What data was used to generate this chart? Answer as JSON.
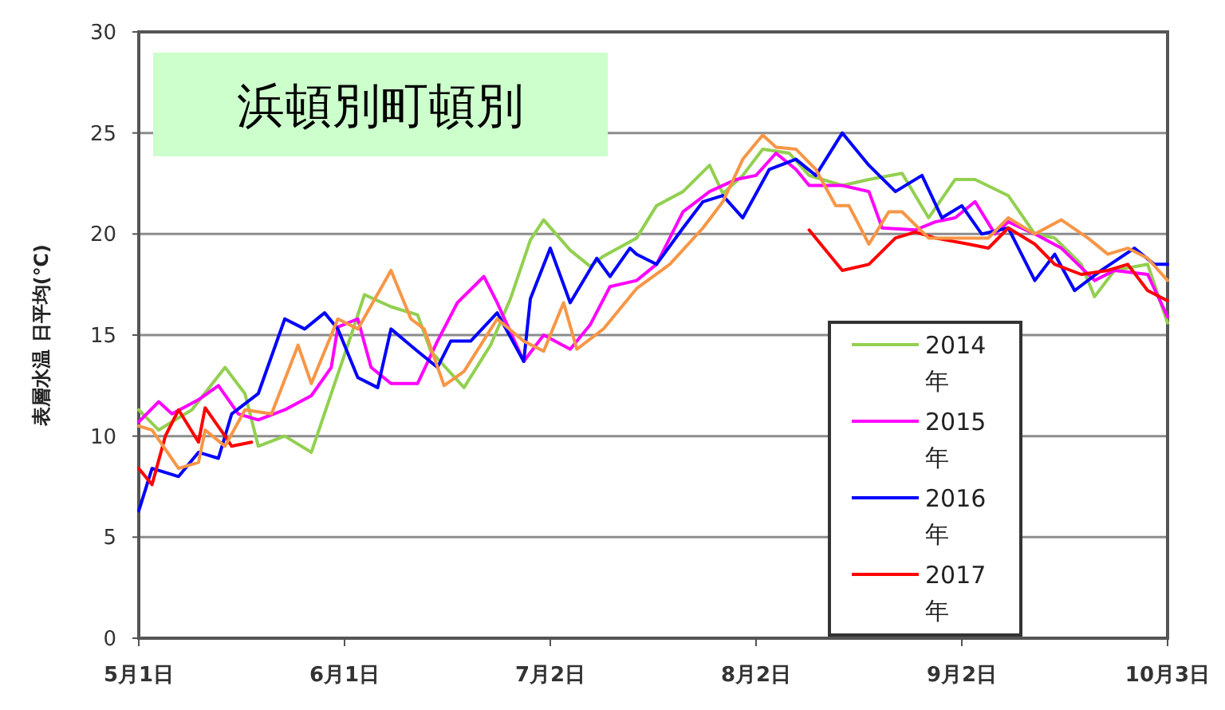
{
  "chart_data": {
    "type": "line",
    "title": "浜頓別町頓別",
    "ylabel": "表層水温 日平均(℃)",
    "xlim": [
      "--05-01",
      "--10-03"
    ],
    "xticks": [
      {
        "value": "--05-01",
        "label": "5月1日"
      },
      {
        "value": "--06-01",
        "label": "6月1日"
      },
      {
        "value": "--07-02",
        "label": "7月2日"
      },
      {
        "value": "--08-02",
        "label": "8月2日"
      },
      {
        "value": "--09-02",
        "label": "9月2日"
      },
      {
        "value": "--10-03",
        "label": "10月3日"
      }
    ],
    "ylim": [
      0,
      30
    ],
    "yticks": [
      0,
      5,
      10,
      15,
      20,
      25,
      30
    ],
    "grid": "y",
    "legend": "bottom right",
    "series": [
      {
        "name": "2014年",
        "color": "#92d050",
        "x": [
          "--05-01",
          "--05-04",
          "--05-09",
          "--05-14",
          "--05-17",
          "--05-19",
          "--05-23",
          "--05-27",
          "--05-30",
          "--06-02",
          "--06-04",
          "--06-08",
          "--06-12",
          "--06-14",
          "--06-19",
          "--06-23",
          "--06-26",
          "--06-29",
          "--07-01",
          "--07-05",
          "--07-08",
          "--07-10",
          "--07-15",
          "--07-18",
          "--07-22",
          "--07-26",
          "--07-28",
          "--07-31",
          "--08-03",
          "--08-07",
          "--08-10",
          "--08-15",
          "--08-19",
          "--08-24",
          "--08-28",
          "--09-01",
          "--09-04",
          "--09-09",
          "--09-13",
          "--09-16",
          "--09-20",
          "--09-22",
          "--09-25",
          "--09-30",
          "--10-03"
        ],
        "values": [
          11.3,
          10.3,
          11.3,
          13.4,
          12.1,
          9.5,
          10,
          9.2,
          12.1,
          15,
          17,
          16.4,
          16,
          14.2,
          12.4,
          14.5,
          16.8,
          19.7,
          20.7,
          19.2,
          18.4,
          18.9,
          19.8,
          21.4,
          22.1,
          23.4,
          22,
          22.9,
          24.2,
          24,
          22.9,
          22.4,
          22.7,
          23,
          20.8,
          22.7,
          22.7,
          21.9,
          20,
          19.8,
          18.5,
          16.9,
          18.2,
          18.5,
          15.6
        ]
      },
      {
        "name": "2015年",
        "color": "#ff00ff",
        "x": [
          "--05-01",
          "--05-04",
          "--05-06",
          "--05-10",
          "--05-13",
          "--05-16",
          "--05-19",
          "--05-23",
          "--05-27",
          "--05-30",
          "--05-31",
          "--06-03",
          "--06-05",
          "--06-08",
          "--06-12",
          "--06-15",
          "--06-18",
          "--06-22",
          "--06-24",
          "--06-28",
          "--07-01",
          "--07-05",
          "--07-08",
          "--07-11",
          "--07-15",
          "--07-18",
          "--07-22",
          "--07-26",
          "--07-30",
          "--08-02",
          "--08-05",
          "--08-08",
          "--08-10",
          "--08-15",
          "--08-19",
          "--08-21",
          "--08-26",
          "--08-29",
          "--09-01",
          "--09-04",
          "--09-07",
          "--09-09",
          "--09-13",
          "--09-17",
          "--09-22",
          "--09-25",
          "--09-30",
          "--10-03"
        ],
        "values": [
          10.7,
          11.7,
          11.1,
          11.8,
          12.5,
          11.1,
          10.8,
          11.3,
          12,
          13.4,
          15.4,
          15.8,
          13.4,
          12.6,
          12.6,
          14.7,
          16.6,
          17.9,
          16.6,
          13.7,
          15,
          14.3,
          15.5,
          17.4,
          17.7,
          18.5,
          21.1,
          22.1,
          22.7,
          22.9,
          24,
          23.2,
          22.4,
          22.4,
          22.1,
          20.3,
          20.2,
          20.6,
          20.8,
          21.6,
          20,
          20.6,
          20,
          19.3,
          17.7,
          18.2,
          18,
          15.9
        ]
      },
      {
        "name": "2016年",
        "color": "#0000ff",
        "x": [
          "--05-01",
          "--05-03",
          "--05-07",
          "--05-10",
          "--05-13",
          "--05-15",
          "--05-19",
          "--05-23",
          "--05-26",
          "--05-29",
          "--05-31",
          "--06-03",
          "--06-06",
          "--06-08",
          "--06-12",
          "--06-15",
          "--06-17",
          "--06-20",
          "--06-24",
          "--06-28",
          "--06-29",
          "--07-02",
          "--07-05",
          "--07-09",
          "--07-11",
          "--07-14",
          "--07-15",
          "--07-18",
          "--07-22",
          "--07-25",
          "--07-28",
          "--07-31",
          "--08-04",
          "--08-08",
          "--08-11",
          "--08-15",
          "--08-19",
          "--08-23",
          "--08-27",
          "--08-30",
          "--09-02",
          "--09-05",
          "--09-09",
          "--09-13",
          "--09-16",
          "--09-19",
          "--09-23",
          "--09-28",
          "--10-01",
          "--10-03"
        ],
        "values": [
          6.3,
          8.4,
          8,
          9.2,
          8.9,
          11.1,
          12.1,
          15.8,
          15.3,
          16.1,
          15.3,
          12.9,
          12.4,
          15.3,
          14.2,
          13.4,
          14.7,
          14.7,
          16.1,
          13.7,
          16.8,
          19.3,
          16.6,
          18.8,
          17.9,
          19.3,
          19,
          18.5,
          20.3,
          21.6,
          21.9,
          20.8,
          23.2,
          23.7,
          22.9,
          25,
          23.4,
          22.1,
          22.9,
          20.8,
          21.4,
          20,
          20.3,
          17.7,
          19,
          17.2,
          18.2,
          19.3,
          18.5,
          18.5
        ]
      },
      {
        "name": "2017年",
        "color": "#ff0000",
        "x": [
          "--05-01",
          "--05-03",
          "--05-05",
          "--05-07",
          "--05-10",
          "--05-11",
          "--05-14",
          "--05-15",
          "--05-18",
          "--06-20",
          "--08-10",
          "--08-13",
          "--08-15",
          "--08-19",
          "--08-23",
          "--08-26",
          "--08-29",
          "--09-03",
          "--09-06",
          "--09-09",
          "--09-13",
          "--09-16",
          "--09-20",
          "--09-24",
          "--09-27",
          "--09-30",
          "--10-03"
        ],
        "values": [
          8.4,
          7.6,
          10,
          11.3,
          9.7,
          11.4,
          10,
          9.5,
          9.7,
          null,
          20.2,
          19,
          18.2,
          18.5,
          19.8,
          20.1,
          19.8,
          19.5,
          19.3,
          20.3,
          19.5,
          18.5,
          18,
          18.2,
          18.5,
          17.2,
          16.7
        ]
      },
      {
        "color": "#f79646",
        "x": [
          "--05-01",
          "--05-03",
          "--05-07",
          "--05-10",
          "--05-11",
          "--05-14",
          "--05-17",
          "--05-21",
          "--05-25",
          "--05-27",
          "--05-31",
          "--06-03",
          "--06-08",
          "--06-11",
          "--06-13",
          "--06-16",
          "--06-19",
          "--06-24",
          "--06-28",
          "--07-01",
          "--07-04",
          "--07-06",
          "--07-10",
          "--07-15",
          "--07-20",
          "--07-25",
          "--07-28",
          "--07-31",
          "--08-03",
          "--08-05",
          "--08-08",
          "--08-11",
          "--08-14",
          "--08-16",
          "--08-19",
          "--08-22",
          "--08-24",
          "--08-28",
          "--09-01",
          "--09-06",
          "--09-09",
          "--09-13",
          "--09-17",
          "--09-21",
          "--09-24",
          "--09-27",
          "--09-30",
          "--10-03"
        ],
        "values": [
          10.5,
          10.3,
          8.4,
          8.7,
          10.3,
          9.5,
          11.3,
          11.1,
          14.5,
          12.6,
          15.8,
          15.3,
          18.2,
          15.8,
          15.3,
          12.5,
          13.2,
          15.8,
          14.7,
          14.2,
          16.6,
          14.3,
          15.3,
          17.3,
          18.5,
          20.3,
          21.6,
          23.7,
          24.9,
          24.3,
          24.2,
          23.2,
          21.4,
          21.4,
          19.5,
          21.1,
          21.1,
          19.8,
          19.8,
          19.8,
          20.8,
          20,
          20.7,
          19.8,
          19,
          19.3,
          18.8,
          17.7
        ]
      }
    ]
  }
}
